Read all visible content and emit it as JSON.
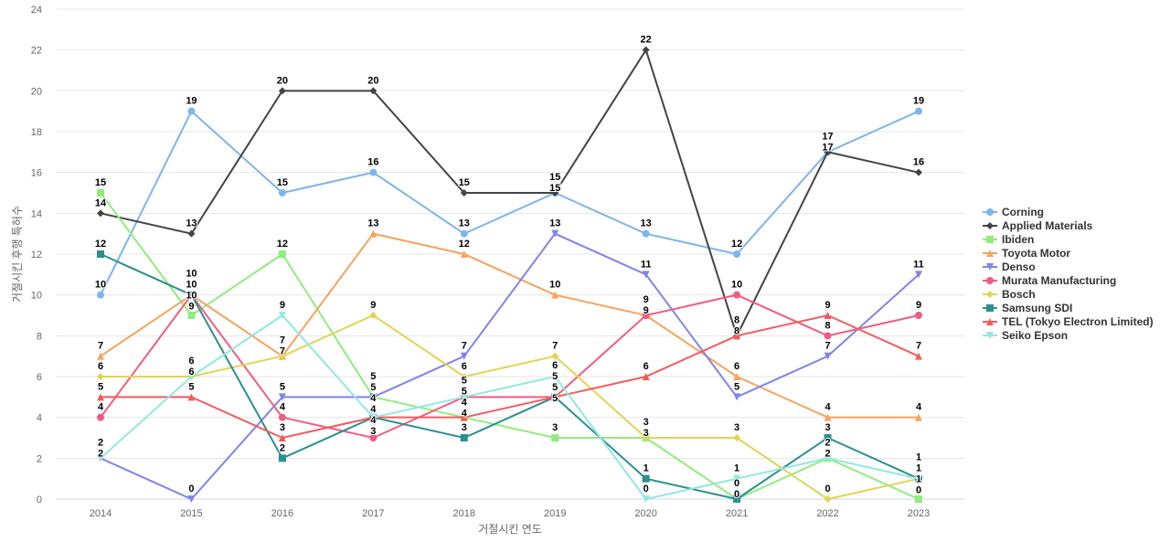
{
  "chart_data": {
    "type": "line",
    "title": "",
    "xlabel": "거절시킨 연도",
    "ylabel": "거절시킨 후행 특허수",
    "categories": [
      "2014",
      "2015",
      "2016",
      "2017",
      "2018",
      "2019",
      "2020",
      "2021",
      "2022",
      "2023"
    ],
    "ylim": [
      0,
      24
    ],
    "yticks": [
      0,
      2,
      4,
      6,
      8,
      10,
      12,
      14,
      16,
      18,
      20,
      22,
      24
    ],
    "grid": true,
    "legend_position": "right",
    "series": [
      {
        "name": "Corning",
        "color": "#7cb5ec",
        "marker": "circle",
        "values": [
          10,
          19,
          15,
          16,
          13,
          15,
          13,
          12,
          17,
          19
        ]
      },
      {
        "name": "Applied Materials",
        "color": "#434348",
        "marker": "diamond",
        "values": [
          14,
          13,
          20,
          20,
          15,
          15,
          22,
          8,
          17,
          16
        ]
      },
      {
        "name": "Ibiden",
        "color": "#90ed7d",
        "marker": "square",
        "values": [
          15,
          9,
          12,
          5,
          4,
          3,
          3,
          0,
          2,
          0
        ]
      },
      {
        "name": "Toyota Motor",
        "color": "#f7a35c",
        "marker": "triangle",
        "values": [
          7,
          10,
          7,
          13,
          12,
          10,
          9,
          6,
          4,
          4
        ]
      },
      {
        "name": "Denso",
        "color": "#8085e9",
        "marker": "triangle-down",
        "values": [
          2,
          0,
          5,
          5,
          7,
          13,
          11,
          5,
          7,
          11
        ]
      },
      {
        "name": "Murata Manufacturing",
        "color": "#f15c80",
        "marker": "circle",
        "values": [
          4,
          10,
          4,
          3,
          5,
          5,
          9,
          10,
          8,
          9
        ]
      },
      {
        "name": "Bosch",
        "color": "#e4d354",
        "marker": "diamond",
        "values": [
          6,
          6,
          7,
          9,
          6,
          7,
          3,
          3,
          0,
          1
        ]
      },
      {
        "name": "Samsung SDI",
        "color": "#2b908f",
        "marker": "square",
        "values": [
          12,
          10,
          2,
          4,
          3,
          5,
          1,
          0,
          3,
          1
        ]
      },
      {
        "name": "TEL (Tokyo Electron Limited)",
        "color": "#f45b5b",
        "marker": "triangle",
        "values": [
          5,
          5,
          3,
          4,
          4,
          5,
          6,
          8,
          9,
          7
        ]
      },
      {
        "name": "Seiko Epson",
        "color": "#91e8e1",
        "marker": "triangle-down",
        "values": [
          2,
          6,
          9,
          4,
          5,
          6,
          0,
          1,
          2,
          1
        ]
      }
    ]
  }
}
